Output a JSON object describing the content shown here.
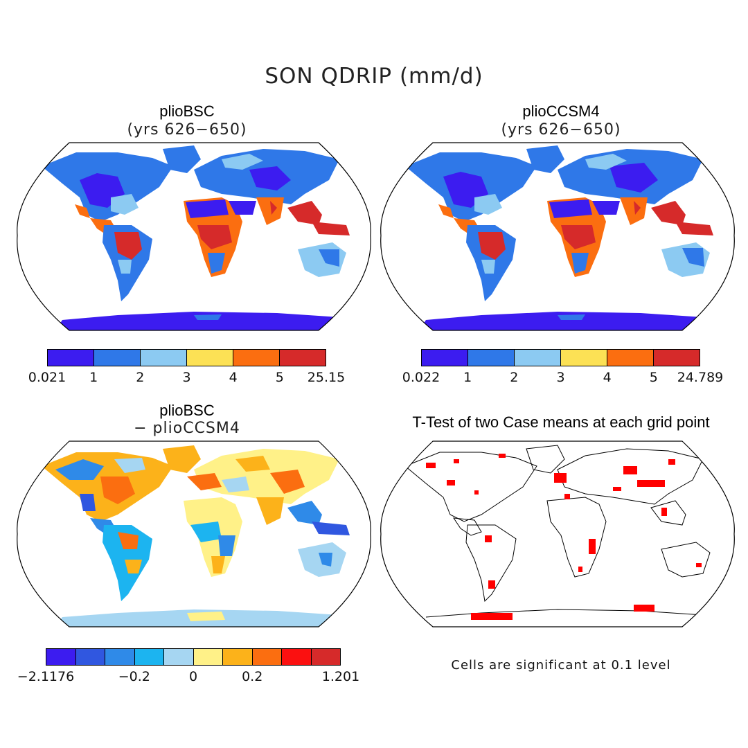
{
  "figure": {
    "title": "SON QDRIP (mm/d)"
  },
  "panels": [
    {
      "id": "p1",
      "title": "plioBSC",
      "subtitle": "(yrs 626−650)"
    },
    {
      "id": "p2",
      "title": "plioCCSM4",
      "subtitle": "(yrs 626−650)"
    },
    {
      "id": "p3",
      "title": "plioBSC",
      "subtitle": "− plioCCSM4"
    },
    {
      "id": "p4",
      "title": "T-Test of two Case means at each grid point",
      "subtitle": ""
    }
  ],
  "colorbars": {
    "cb1": {
      "colors": [
        "#3c1cf0",
        "#2f78e8",
        "#8ccaf2",
        "#fce155",
        "#fb6e10",
        "#d62a2a"
      ],
      "ticks": [
        "0.021",
        "1",
        "2",
        "3",
        "4",
        "5",
        "25.15"
      ]
    },
    "cb2": {
      "colors": [
        "#3c1cf0",
        "#2f78e8",
        "#8ccaf2",
        "#fce155",
        "#fb6e10",
        "#d62a2a"
      ],
      "ticks": [
        "0.022",
        "1",
        "2",
        "3",
        "4",
        "5",
        "24.789"
      ]
    },
    "cb3": {
      "colors": [
        "#3c1cf0",
        "#3057e0",
        "#2f8ae8",
        "#1cb4f0",
        "#a6d6f2",
        "#fff188",
        "#fcb21a",
        "#fb6e10",
        "#fb1010",
        "#d62a2a"
      ],
      "ticks": [
        "−2.1176",
        "−0.2",
        "0",
        "0.2",
        "1.201"
      ]
    }
  },
  "significance_note": "Cells are significant at 0.1 level",
  "significance_color": "#ff0000"
}
